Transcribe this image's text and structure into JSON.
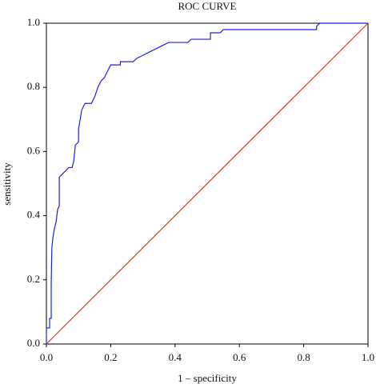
{
  "chart_data": {
    "type": "line",
    "title": "ROC CURVE",
    "x_label": "1 – specificity",
    "y_label": "sensitivity",
    "xlim": [
      0,
      1
    ],
    "ylim": [
      0,
      1
    ],
    "xticks": [
      {
        "value": 0,
        "label": "0.0"
      },
      0.2,
      0.4,
      0.6,
      0.8,
      {
        "value": 1,
        "label": "1.0"
      }
    ],
    "yticks": [
      {
        "value": 0,
        "label": "0.0"
      },
      0.2,
      0.4,
      0.6,
      0.8,
      {
        "value": 1,
        "label": "1.0"
      }
    ],
    "grid": false,
    "series": [
      {
        "color": "#1f1fe0",
        "x": [
          0,
          0,
          0.01,
          0.01,
          0.015,
          0.015,
          0.017,
          0.02,
          0.025,
          0.03,
          0.035,
          0.04,
          0.04,
          0.05,
          0.06,
          0.07,
          0.08,
          0.085,
          0.09,
          0.1,
          0.1,
          0.105,
          0.11,
          0.12,
          0.14,
          0.15,
          0.16,
          0.17,
          0.18,
          0.19,
          0.2,
          0.23,
          0.23,
          0.27,
          0.28,
          0.3,
          0.32,
          0.34,
          0.36,
          0.38,
          0.44,
          0.45,
          0.51,
          0.51,
          0.54,
          0.55,
          0.84,
          0.84,
          0.85,
          1
        ],
        "values": [
          0,
          0.05,
          0.05,
          0.08,
          0.08,
          0.19,
          0.3,
          0.33,
          0.36,
          0.38,
          0.42,
          0.43,
          0.52,
          0.53,
          0.54,
          0.55,
          0.55,
          0.57,
          0.62,
          0.63,
          0.67,
          0.7,
          0.73,
          0.75,
          0.75,
          0.77,
          0.8,
          0.82,
          0.83,
          0.85,
          0.87,
          0.87,
          0.88,
          0.88,
          0.89,
          0.9,
          0.91,
          0.92,
          0.93,
          0.94,
          0.94,
          0.95,
          0.95,
          0.97,
          0.97,
          0.98,
          0.98,
          0.99,
          1,
          1
        ]
      },
      {
        "color": "#d03a1e",
        "x": [
          0,
          1
        ],
        "values": [
          0,
          1
        ]
      }
    ]
  }
}
